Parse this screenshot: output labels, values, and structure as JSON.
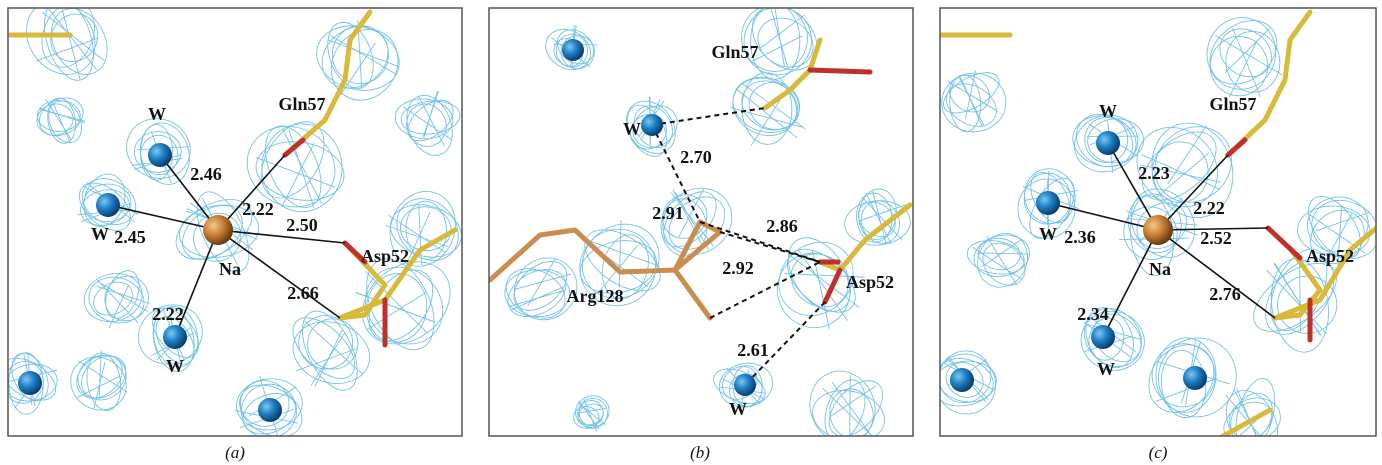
{
  "panels": [
    {
      "caption": "(a)",
      "labels": [
        "W",
        "W",
        "W",
        "Na",
        "Gln57",
        "Asp52"
      ],
      "distances": [
        "2.46",
        "2.22",
        "2.45",
        "2.50",
        "2.22",
        "2.66"
      ]
    },
    {
      "caption": "(b)",
      "labels": [
        "W",
        "Gln57",
        "Arg128",
        "Asp52",
        "W"
      ],
      "distances": [
        "2.70",
        "2.91",
        "2.86",
        "2.92",
        "2.61"
      ]
    },
    {
      "caption": "(c)",
      "labels": [
        "W",
        "Gln57",
        "W",
        "Na",
        "Asp52",
        "W"
      ],
      "distances": [
        "2.23",
        "2.22",
        "2.36",
        "2.52",
        "2.34",
        "2.76"
      ]
    }
  ]
}
